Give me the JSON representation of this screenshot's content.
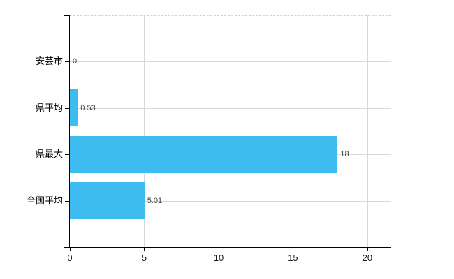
{
  "chart_data": {
    "type": "bar",
    "orientation": "horizontal",
    "title": "",
    "xlabel": "",
    "ylabel": "",
    "categories": [
      "安芸市",
      "県平均",
      "県最大",
      "全国平均"
    ],
    "values": [
      0,
      0.53,
      18,
      5.01
    ],
    "value_labels": [
      "0",
      "0.53",
      "18",
      "5.01"
    ],
    "xticks": [
      0,
      5,
      10,
      15,
      20
    ],
    "xtick_labels": [
      "0",
      "5",
      "10",
      "15",
      "20"
    ],
    "xlim": [
      0,
      21.6
    ],
    "grid": true,
    "legend": false,
    "colors": {
      "bar": "#3DBDEF",
      "grid": "#D8D8D8",
      "top_border": "#D0D0D0",
      "axis": "#000000",
      "category_label": "#000000",
      "value_label": "#404040",
      "tick_label": "#1A1A1A",
      "background": "#FFFFFF"
    }
  }
}
